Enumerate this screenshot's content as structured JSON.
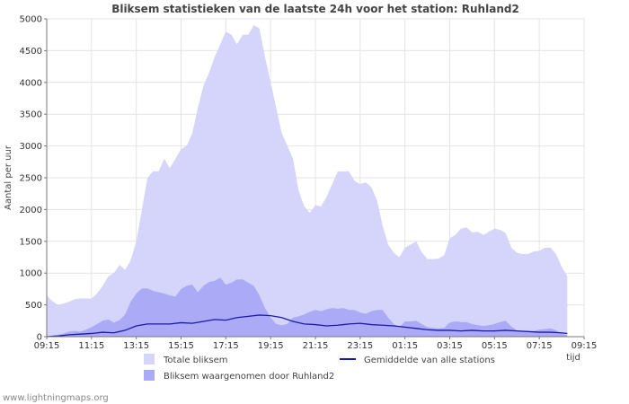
{
  "chart_data": {
    "type": "area",
    "title": "Bliksem statistieken van de laatste 24h voor het station: Ruhland2",
    "ylabel": "Aantal per uur",
    "xlabel": "tijd",
    "ylim": [
      0,
      5000
    ],
    "yticks": [
      0,
      500,
      1000,
      1500,
      2000,
      2500,
      3000,
      3500,
      4000,
      4500,
      5000
    ],
    "xlim": [
      0,
      24
    ],
    "xticks": [
      {
        "x": 0,
        "label": "09:15"
      },
      {
        "x": 2,
        "label": "11:15"
      },
      {
        "x": 4,
        "label": "13:15"
      },
      {
        "x": 6,
        "label": "15:15"
      },
      {
        "x": 8,
        "label": "17:15"
      },
      {
        "x": 10,
        "label": "19:15"
      },
      {
        "x": 12,
        "label": "21:15"
      },
      {
        "x": 14,
        "label": "23:15"
      },
      {
        "x": 16,
        "label": "01:15"
      },
      {
        "x": 18,
        "label": "03:15"
      },
      {
        "x": 20,
        "label": "05:15"
      },
      {
        "x": 22,
        "label": "07:15"
      },
      {
        "x": 24,
        "label": "09:15"
      }
    ],
    "grid": true,
    "legend_position": "bottom",
    "series": [
      {
        "name": "Totale bliksem",
        "kind": "area",
        "color": "#d5d5fb",
        "points": [
          [
            0,
            650
          ],
          [
            0.25,
            560
          ],
          [
            0.5,
            500
          ],
          [
            0.75,
            520
          ],
          [
            1,
            550
          ],
          [
            1.25,
            590
          ],
          [
            1.5,
            600
          ],
          [
            1.75,
            600
          ],
          [
            2,
            600
          ],
          [
            2.25,
            680
          ],
          [
            2.5,
            800
          ],
          [
            2.75,
            950
          ],
          [
            3,
            1000
          ],
          [
            3.25,
            1130
          ],
          [
            3.5,
            1050
          ],
          [
            3.75,
            1200
          ],
          [
            4,
            1500
          ],
          [
            4.25,
            2000
          ],
          [
            4.5,
            2500
          ],
          [
            4.75,
            2600
          ],
          [
            5,
            2600
          ],
          [
            5.25,
            2800
          ],
          [
            5.5,
            2650
          ],
          [
            5.75,
            2800
          ],
          [
            6,
            2950
          ],
          [
            6.25,
            3000
          ],
          [
            6.5,
            3200
          ],
          [
            6.75,
            3600
          ],
          [
            7,
            3950
          ],
          [
            7.25,
            4150
          ],
          [
            7.5,
            4400
          ],
          [
            7.75,
            4600
          ],
          [
            8,
            4800
          ],
          [
            8.25,
            4750
          ],
          [
            8.5,
            4600
          ],
          [
            8.75,
            4750
          ],
          [
            9,
            4750
          ],
          [
            9.25,
            4900
          ],
          [
            9.5,
            4850
          ],
          [
            9.75,
            4400
          ],
          [
            10,
            4000
          ],
          [
            10.25,
            3600
          ],
          [
            10.5,
            3200
          ],
          [
            10.75,
            3000
          ],
          [
            11,
            2800
          ],
          [
            11.25,
            2300
          ],
          [
            11.5,
            2050
          ],
          [
            11.75,
            1950
          ],
          [
            12,
            2070
          ],
          [
            12.25,
            2050
          ],
          [
            12.5,
            2200
          ],
          [
            12.75,
            2400
          ],
          [
            13,
            2600
          ],
          [
            13.25,
            2600
          ],
          [
            13.5,
            2600
          ],
          [
            13.75,
            2450
          ],
          [
            14,
            2400
          ],
          [
            14.25,
            2430
          ],
          [
            14.5,
            2350
          ],
          [
            14.75,
            2150
          ],
          [
            15,
            1750
          ],
          [
            15.25,
            1450
          ],
          [
            15.5,
            1320
          ],
          [
            15.75,
            1250
          ],
          [
            16,
            1400
          ],
          [
            16.25,
            1450
          ],
          [
            16.5,
            1500
          ],
          [
            16.75,
            1330
          ],
          [
            17,
            1220
          ],
          [
            17.25,
            1220
          ],
          [
            17.5,
            1230
          ],
          [
            17.75,
            1280
          ],
          [
            18,
            1550
          ],
          [
            18.25,
            1600
          ],
          [
            18.5,
            1700
          ],
          [
            18.75,
            1720
          ],
          [
            19,
            1640
          ],
          [
            19.25,
            1650
          ],
          [
            19.5,
            1600
          ],
          [
            19.75,
            1650
          ],
          [
            20,
            1700
          ],
          [
            20.25,
            1680
          ],
          [
            20.5,
            1630
          ],
          [
            20.75,
            1400
          ],
          [
            21,
            1320
          ],
          [
            21.25,
            1300
          ],
          [
            21.5,
            1300
          ],
          [
            21.75,
            1340
          ],
          [
            22,
            1350
          ],
          [
            22.25,
            1400
          ],
          [
            22.5,
            1400
          ],
          [
            22.75,
            1300
          ],
          [
            23,
            1100
          ],
          [
            23.25,
            950
          ]
        ]
      },
      {
        "name": "Bliksem waargenomen door Ruhland2",
        "kind": "area",
        "color": "#aaaaf7",
        "points": [
          [
            0,
            0
          ],
          [
            0.25,
            20
          ],
          [
            0.5,
            30
          ],
          [
            0.75,
            50
          ],
          [
            1,
            80
          ],
          [
            1.25,
            90
          ],
          [
            1.5,
            80
          ],
          [
            1.75,
            110
          ],
          [
            2,
            150
          ],
          [
            2.25,
            200
          ],
          [
            2.5,
            250
          ],
          [
            2.75,
            270
          ],
          [
            3,
            220
          ],
          [
            3.25,
            260
          ],
          [
            3.5,
            350
          ],
          [
            3.75,
            550
          ],
          [
            4,
            680
          ],
          [
            4.25,
            760
          ],
          [
            4.5,
            760
          ],
          [
            4.75,
            720
          ],
          [
            5,
            700
          ],
          [
            5.25,
            680
          ],
          [
            5.5,
            650
          ],
          [
            5.75,
            630
          ],
          [
            6,
            750
          ],
          [
            6.25,
            800
          ],
          [
            6.5,
            820
          ],
          [
            6.75,
            700
          ],
          [
            7,
            800
          ],
          [
            7.25,
            860
          ],
          [
            7.5,
            880
          ],
          [
            7.75,
            930
          ],
          [
            8,
            820
          ],
          [
            8.25,
            850
          ],
          [
            8.5,
            900
          ],
          [
            8.75,
            900
          ],
          [
            9,
            850
          ],
          [
            9.25,
            800
          ],
          [
            9.5,
            650
          ],
          [
            9.75,
            450
          ],
          [
            10,
            300
          ],
          [
            10.25,
            200
          ],
          [
            10.5,
            180
          ],
          [
            10.75,
            200
          ],
          [
            11,
            300
          ],
          [
            11.25,
            320
          ],
          [
            11.5,
            350
          ],
          [
            11.75,
            390
          ],
          [
            12,
            420
          ],
          [
            12.25,
            400
          ],
          [
            12.5,
            430
          ],
          [
            12.75,
            450
          ],
          [
            13,
            440
          ],
          [
            13.25,
            450
          ],
          [
            13.5,
            420
          ],
          [
            13.75,
            420
          ],
          [
            14,
            380
          ],
          [
            14.25,
            360
          ],
          [
            14.5,
            400
          ],
          [
            14.75,
            420
          ],
          [
            15,
            420
          ],
          [
            15.25,
            300
          ],
          [
            15.5,
            200
          ],
          [
            15.75,
            150
          ],
          [
            16,
            240
          ],
          [
            16.25,
            240
          ],
          [
            16.5,
            250
          ],
          [
            16.75,
            200
          ],
          [
            17,
            150
          ],
          [
            17.25,
            140
          ],
          [
            17.5,
            130
          ],
          [
            17.75,
            140
          ],
          [
            18,
            220
          ],
          [
            18.25,
            240
          ],
          [
            18.5,
            230
          ],
          [
            18.75,
            230
          ],
          [
            19,
            200
          ],
          [
            19.25,
            180
          ],
          [
            19.5,
            170
          ],
          [
            19.75,
            180
          ],
          [
            20,
            200
          ],
          [
            20.25,
            230
          ],
          [
            20.5,
            250
          ],
          [
            20.75,
            160
          ],
          [
            21,
            100
          ],
          [
            21.25,
            80
          ],
          [
            21.5,
            80
          ],
          [
            21.75,
            90
          ],
          [
            22,
            110
          ],
          [
            22.25,
            120
          ],
          [
            22.5,
            130
          ],
          [
            22.75,
            100
          ],
          [
            23,
            50
          ],
          [
            23.25,
            20
          ]
        ]
      },
      {
        "name": "Gemiddelde van alle stations",
        "kind": "line",
        "color": "#1a1aa8",
        "points": [
          [
            0,
            0
          ],
          [
            0.5,
            10
          ],
          [
            1,
            30
          ],
          [
            1.5,
            40
          ],
          [
            2,
            50
          ],
          [
            2.5,
            70
          ],
          [
            3,
            60
          ],
          [
            3.5,
            100
          ],
          [
            4,
            170
          ],
          [
            4.5,
            200
          ],
          [
            5,
            200
          ],
          [
            5.5,
            200
          ],
          [
            6,
            220
          ],
          [
            6.5,
            210
          ],
          [
            7,
            240
          ],
          [
            7.5,
            270
          ],
          [
            8,
            260
          ],
          [
            8.5,
            300
          ],
          [
            9,
            320
          ],
          [
            9.5,
            340
          ],
          [
            10,
            330
          ],
          [
            10.5,
            300
          ],
          [
            11,
            240
          ],
          [
            11.5,
            200
          ],
          [
            12,
            190
          ],
          [
            12.5,
            170
          ],
          [
            13,
            180
          ],
          [
            13.5,
            200
          ],
          [
            14,
            210
          ],
          [
            14.5,
            190
          ],
          [
            15,
            180
          ],
          [
            15.5,
            170
          ],
          [
            16,
            150
          ],
          [
            16.5,
            130
          ],
          [
            17,
            110
          ],
          [
            17.5,
            100
          ],
          [
            18,
            100
          ],
          [
            18.5,
            90
          ],
          [
            19,
            100
          ],
          [
            19.5,
            90
          ],
          [
            20,
            90
          ],
          [
            20.5,
            100
          ],
          [
            21,
            90
          ],
          [
            21.5,
            80
          ],
          [
            22,
            70
          ],
          [
            22.5,
            70
          ],
          [
            23,
            60
          ],
          [
            23.25,
            50
          ]
        ]
      }
    ]
  },
  "page": {
    "watermark": "www.lightningmaps.org"
  }
}
